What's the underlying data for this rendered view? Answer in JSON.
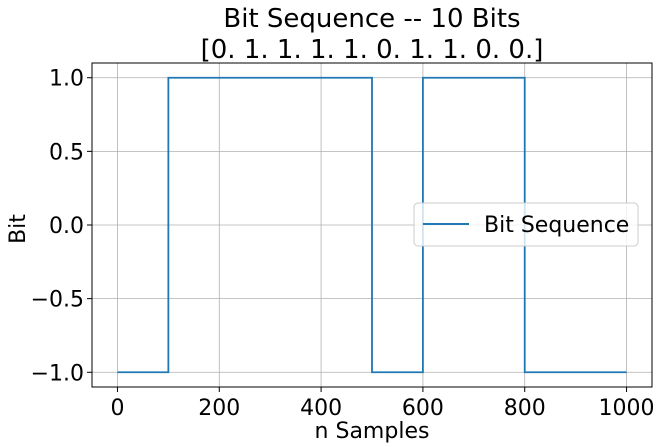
{
  "chart_data": {
    "type": "line",
    "title": "Bit Sequence -- 10 Bits",
    "subtitle": "[0. 1. 1. 1. 1. 0. 1. 1. 0. 0.]",
    "xlabel": "n Samples",
    "ylabel": "Bit",
    "xlim": [
      -50,
      1050
    ],
    "ylim": [
      -1.1,
      1.1
    ],
    "xticks": [
      0,
      200,
      400,
      600,
      800,
      1000
    ],
    "xtick_labels": [
      "0",
      "200",
      "400",
      "600",
      "800",
      "1000"
    ],
    "yticks": [
      -1.0,
      -0.5,
      0.0,
      0.5,
      1.0
    ],
    "ytick_labels": [
      "−1.0",
      "−0.5",
      "0.0",
      "0.5",
      "1.0"
    ],
    "grid": true,
    "legend": {
      "entries": [
        "Bit Sequence"
      ],
      "placement": "center-right"
    },
    "series": [
      {
        "name": "Bit Sequence",
        "color": "#1f77b4",
        "x": [
          0,
          100,
          100,
          500,
          500,
          600,
          600,
          800,
          800,
          1000
        ],
        "y": [
          -1,
          -1,
          1,
          1,
          -1,
          -1,
          1,
          1,
          -1,
          -1
        ]
      }
    ]
  }
}
